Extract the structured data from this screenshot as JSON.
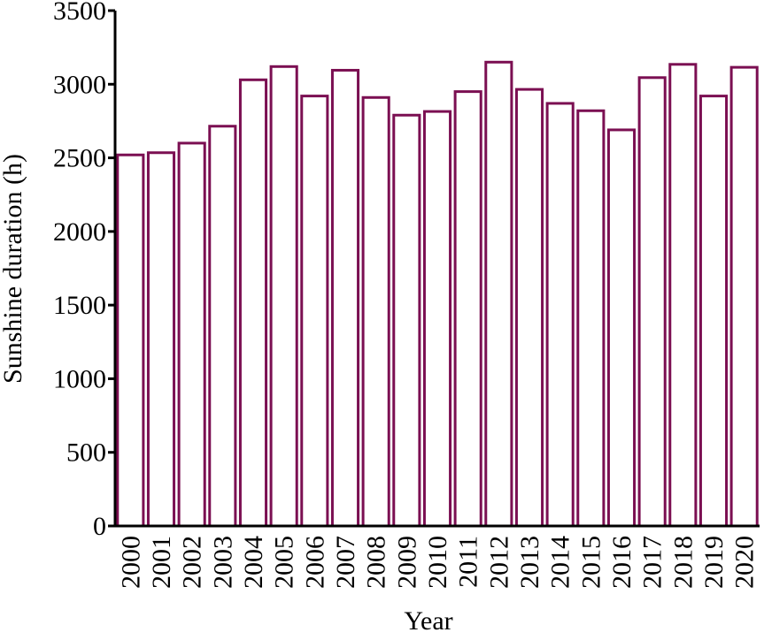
{
  "chart_data": {
    "type": "bar",
    "x_label": "Year",
    "y_label": "Sunshine duration (h)",
    "categories": [
      "2000",
      "2001",
      "2002",
      "2003",
      "2004",
      "2005",
      "2006",
      "2007",
      "2008",
      "2009",
      "2010",
      "2011",
      "2012",
      "2013",
      "2014",
      "2015",
      "2016",
      "2017",
      "2018",
      "2019",
      "2020"
    ],
    "values": [
      2520,
      2535,
      2600,
      2715,
      3030,
      3120,
      2920,
      3095,
      2910,
      2790,
      2815,
      2950,
      3150,
      2965,
      2870,
      2820,
      2690,
      3045,
      3135,
      2920,
      3115
    ],
    "color": "#7b0f52",
    "ylim": [
      0,
      3500
    ],
    "yticks": [
      0,
      500,
      1000,
      1500,
      2000,
      2500,
      3000,
      3500
    ],
    "grid": false
  }
}
